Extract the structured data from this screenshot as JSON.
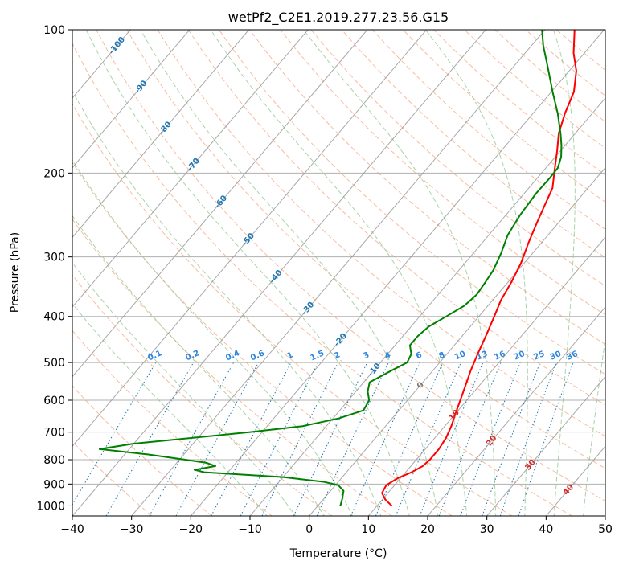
{
  "chart_data": {
    "type": "line",
    "title": "wetPf2_C2E1.2019.277.23.56.G15",
    "xlabel": "Temperature (°C)",
    "ylabel": "Pressure (hPa)",
    "xlim": [
      -40,
      50
    ],
    "ylim": [
      1050,
      100
    ],
    "y_scale": "log",
    "grid": true,
    "x_ticks": [
      "−40",
      "−30",
      "−20",
      "−10",
      "0",
      "10",
      "20",
      "30",
      "40",
      "50"
    ],
    "y_ticks": [
      {
        "p": 100,
        "label": "100"
      },
      {
        "p": 200,
        "label": "200"
      },
      {
        "p": 300,
        "label": "300"
      },
      {
        "p": 400,
        "label": "400"
      },
      {
        "p": 500,
        "label": "500"
      },
      {
        "p": 600,
        "label": "600"
      },
      {
        "p": 700,
        "label": "700"
      },
      {
        "p": 800,
        "label": "800"
      },
      {
        "p": 900,
        "label": "900"
      },
      {
        "p": 1000,
        "label": "1000"
      }
    ],
    "series": [
      {
        "color": "#ff0000",
        "points": [
          [
            12.5,
            1000
          ],
          [
            10.5,
            970
          ],
          [
            9.0,
            940
          ],
          [
            8.6,
            905
          ],
          [
            9.5,
            875
          ],
          [
            11.0,
            850
          ],
          [
            12.0,
            825
          ],
          [
            12.3,
            800
          ],
          [
            12.3,
            760
          ],
          [
            11.9,
            720
          ],
          [
            11.1,
            680
          ],
          [
            10.0,
            640
          ],
          [
            8.9,
            600
          ],
          [
            7.7,
            560
          ],
          [
            6.4,
            520
          ],
          [
            5.2,
            480
          ],
          [
            4.0,
            440
          ],
          [
            2.6,
            400
          ],
          [
            1.4,
            370
          ],
          [
            0.6,
            340
          ],
          [
            -0.5,
            310
          ],
          [
            -2.2,
            280
          ],
          [
            -3.9,
            250
          ],
          [
            -6.0,
            215
          ],
          [
            -8.5,
            195
          ],
          [
            -10.5,
            180
          ],
          [
            -12.8,
            165
          ],
          [
            -14.6,
            150
          ],
          [
            -16.2,
            135
          ],
          [
            -18.8,
            122
          ],
          [
            -21.8,
            112
          ],
          [
            -25.0,
            100
          ]
        ]
      },
      {
        "color": "#008000",
        "points": [
          [
            3.8,
            1000
          ],
          [
            3.2,
            970
          ],
          [
            2.2,
            930
          ],
          [
            0.5,
            905
          ],
          [
            -2.5,
            890
          ],
          [
            -10.0,
            870
          ],
          [
            -24.0,
            850
          ],
          [
            -26.0,
            840
          ],
          [
            -23.0,
            825
          ],
          [
            -25.0,
            812
          ],
          [
            -29.0,
            800
          ],
          [
            -36.0,
            780
          ],
          [
            -45.0,
            760
          ],
          [
            -40.0,
            740
          ],
          [
            -31.0,
            720
          ],
          [
            -22.0,
            700
          ],
          [
            -14.0,
            680
          ],
          [
            -9.0,
            655
          ],
          [
            -6.0,
            630
          ],
          [
            -6.5,
            600
          ],
          [
            -8.0,
            575
          ],
          [
            -9.0,
            550
          ],
          [
            -7.0,
            520
          ],
          [
            -5.5,
            500
          ],
          [
            -6.0,
            480
          ],
          [
            -7.5,
            460
          ],
          [
            -7.5,
            440
          ],
          [
            -7.0,
            420
          ],
          [
            -5.5,
            400
          ],
          [
            -4.0,
            380
          ],
          [
            -3.5,
            360
          ],
          [
            -3.8,
            340
          ],
          [
            -4.2,
            320
          ],
          [
            -5.3,
            295
          ],
          [
            -6.8,
            270
          ],
          [
            -7.6,
            245
          ],
          [
            -8.0,
            220
          ],
          [
            -7.9,
            205
          ],
          [
            -8.0,
            195
          ],
          [
            -9.0,
            185
          ],
          [
            -10.6,
            175
          ],
          [
            -12.5,
            165
          ],
          [
            -15.8,
            150
          ],
          [
            -19.8,
            135
          ],
          [
            -24.1,
            120
          ],
          [
            -28.0,
            108
          ],
          [
            -30.5,
            100
          ]
        ]
      }
    ],
    "isotherm_labels": [
      "-100",
      "-90",
      "-80",
      "-70",
      "-60",
      "-50",
      "-40",
      "-30",
      "-20",
      "-10",
      "0",
      "10",
      "20",
      "30",
      "40"
    ],
    "mixing_ratio_labels": [
      "0.1",
      "0.2",
      "0.4",
      "0.6",
      "1",
      "1.5",
      "2",
      "3",
      "4",
      "6",
      "8",
      "10",
      "13",
      "16",
      "20",
      "25",
      "30",
      "36"
    ]
  },
  "colors": {
    "temperature": "#ff0000",
    "dewpoint": "#008000",
    "skewed_isotherm": "#8c8c8c",
    "dry_adiabat": "#f4a582",
    "moist_adiabat": "#86c186",
    "mixing_ratio": "#1f77b4",
    "label_blue": "#1f77b4",
    "label_red": "#d62728"
  }
}
